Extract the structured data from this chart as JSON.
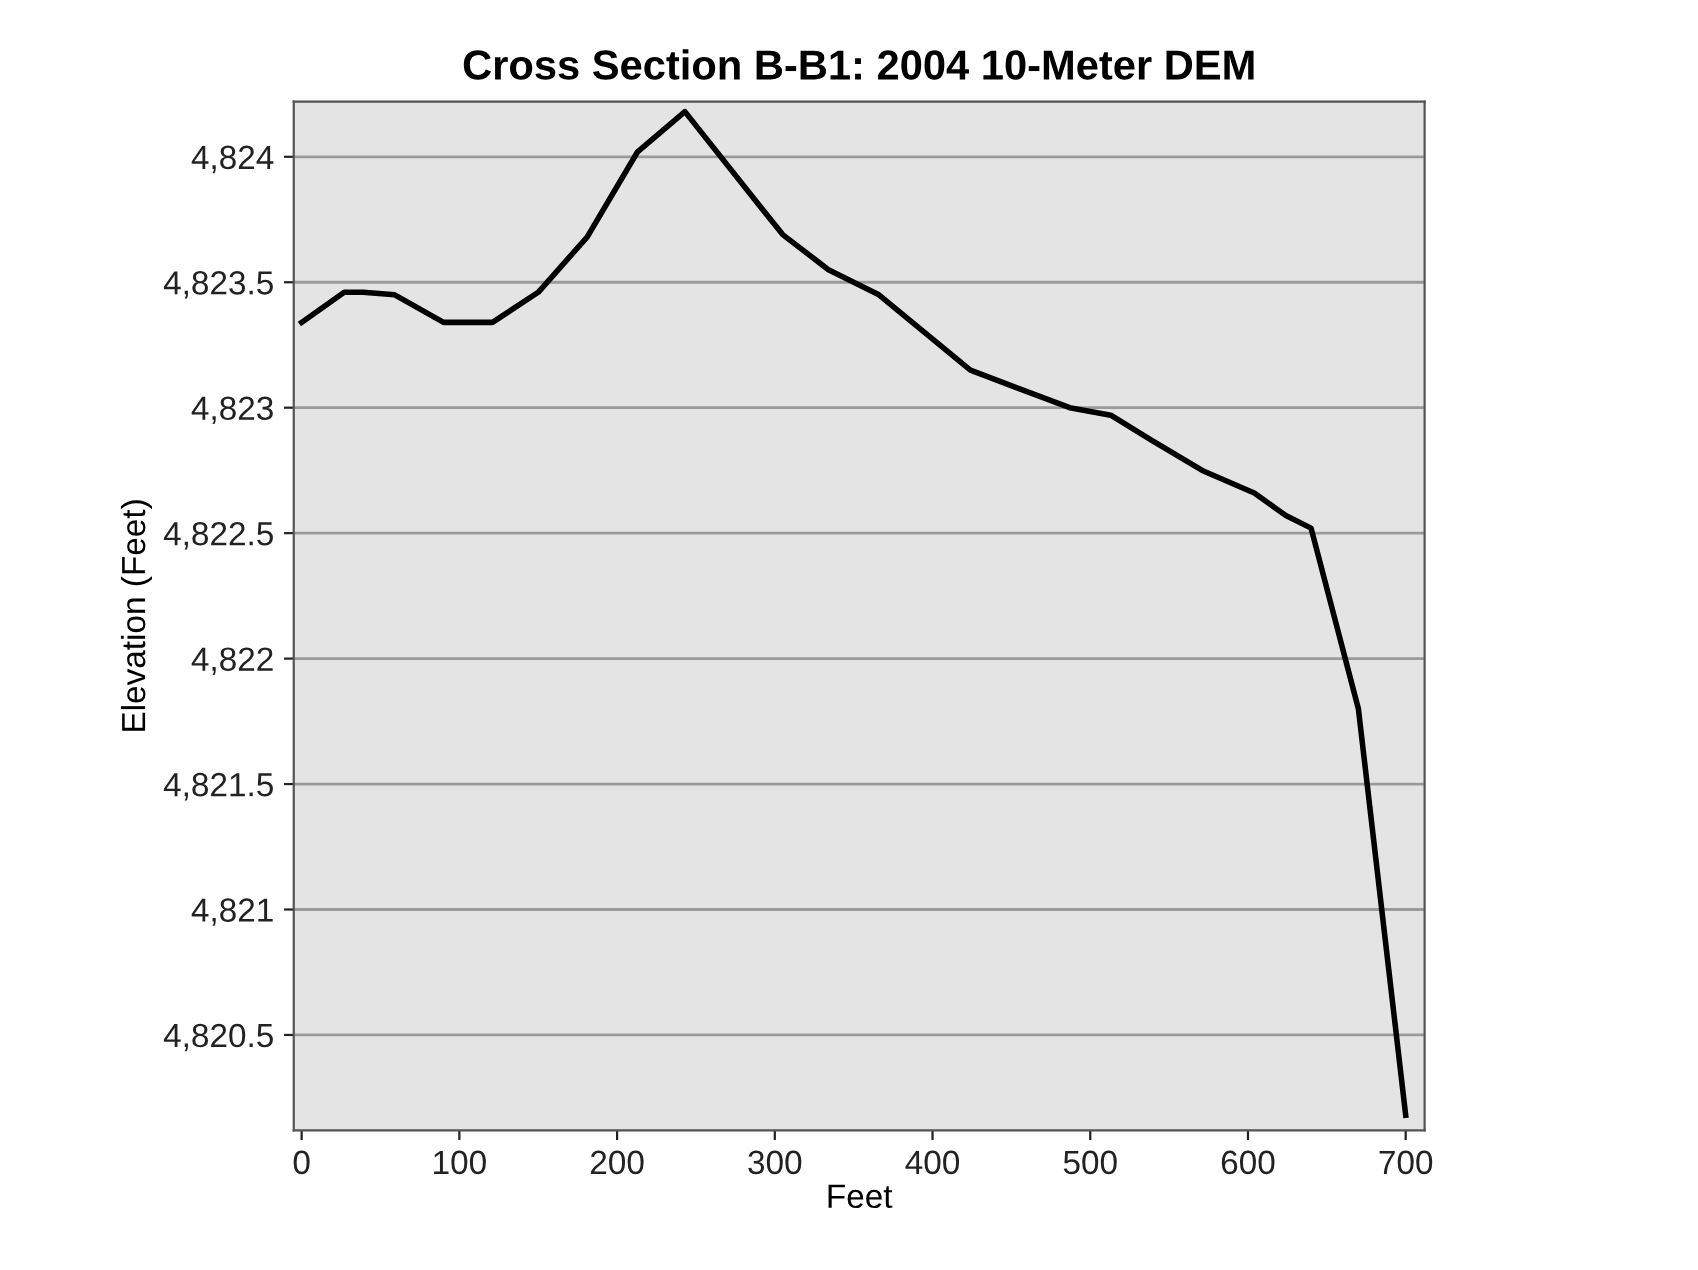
{
  "chart_data": {
    "type": "line",
    "title": "Cross Section B-B1: 2004 10-Meter DEM",
    "xlabel": "Feet",
    "ylabel": "Elevation (Feet)",
    "x": [
      0,
      27,
      39,
      59,
      90,
      121,
      150,
      181,
      213,
      243,
      291,
      305,
      334,
      366,
      424,
      449,
      487,
      513,
      539,
      571,
      604,
      624,
      640,
      670,
      700
    ],
    "series": [
      {
        "color": "#000000",
        "values": [
          4823.34,
          4823.46,
          4823.46,
          4823.45,
          4823.34,
          4823.34,
          4823.46,
          4823.68,
          4824.02,
          4824.18,
          4823.8,
          4823.69,
          4823.55,
          4823.45,
          4823.15,
          4823.09,
          4823.0,
          4822.97,
          4822.87,
          4822.75,
          4822.66,
          4822.57,
          4822.52,
          4821.8,
          4820.18
        ]
      }
    ],
    "xlim": [
      -5,
      712
    ],
    "ylim": [
      4820.12,
      4824.22
    ],
    "xticks": [
      0,
      100,
      200,
      300,
      400,
      500,
      600,
      700
    ],
    "yticks": [
      {
        "value": 4820.5,
        "label": "4,820.5"
      },
      {
        "value": 4821,
        "label": "4,821"
      },
      {
        "value": 4821.5,
        "label": "4,821.5"
      },
      {
        "value": 4822,
        "label": "4,822"
      },
      {
        "value": 4822.5,
        "label": "4,822.5"
      },
      {
        "value": 4823,
        "label": "4,823"
      },
      {
        "value": 4823.5,
        "label": "4,823.5"
      },
      {
        "value": 4824,
        "label": "4,824"
      }
    ],
    "grid": "y",
    "marker": "none",
    "line_style": "solid"
  }
}
